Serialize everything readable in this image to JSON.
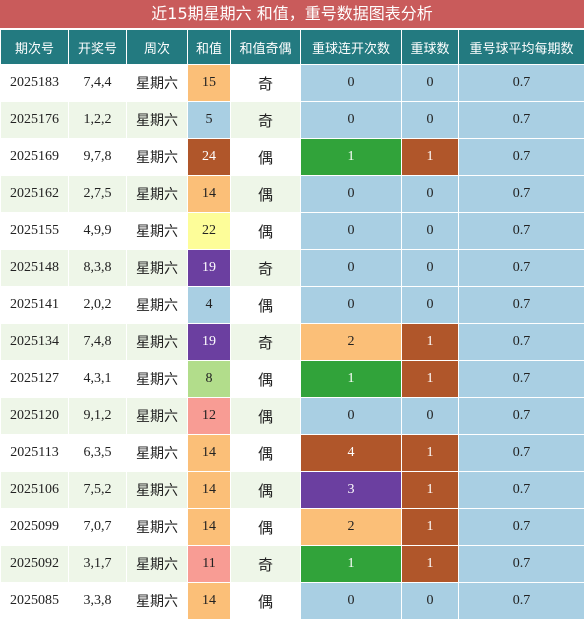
{
  "title": "近15期星期六 和值，重号数据图表分析",
  "headers": [
    "期次号",
    "开奖号",
    "周次",
    "和值",
    "和值奇偶",
    "重球连开次数",
    "重球数",
    "重号球平均每期数"
  ],
  "rows": [
    {
      "period": "2025183",
      "numbers": "7,4,4",
      "weekday": "星期六",
      "sum": "15",
      "sum_color": "orange",
      "parity": "奇",
      "repeat_streak": "0",
      "streak_color": "blue",
      "repeat_count": "0",
      "count_color": "blue",
      "avg": "0.7"
    },
    {
      "period": "2025176",
      "numbers": "1,2,2",
      "weekday": "星期六",
      "sum": "5",
      "sum_color": "blue",
      "parity": "奇",
      "repeat_streak": "0",
      "streak_color": "blue",
      "repeat_count": "0",
      "count_color": "blue",
      "avg": "0.7"
    },
    {
      "period": "2025169",
      "numbers": "9,7,8",
      "weekday": "星期六",
      "sum": "24",
      "sum_color": "brown",
      "parity": "偶",
      "repeat_streak": "1",
      "streak_color": "green",
      "repeat_count": "1",
      "count_color": "darkorange",
      "avg": "0.7"
    },
    {
      "period": "2025162",
      "numbers": "2,7,5",
      "weekday": "星期六",
      "sum": "14",
      "sum_color": "orange",
      "parity": "偶",
      "repeat_streak": "0",
      "streak_color": "blue",
      "repeat_count": "0",
      "count_color": "blue",
      "avg": "0.7"
    },
    {
      "period": "2025155",
      "numbers": "4,9,9",
      "weekday": "星期六",
      "sum": "22",
      "sum_color": "yellow",
      "parity": "偶",
      "repeat_streak": "0",
      "streak_color": "blue",
      "repeat_count": "0",
      "count_color": "blue",
      "avg": "0.7"
    },
    {
      "period": "2025148",
      "numbers": "8,3,8",
      "weekday": "星期六",
      "sum": "19",
      "sum_color": "purple",
      "parity": "奇",
      "repeat_streak": "0",
      "streak_color": "blue",
      "repeat_count": "0",
      "count_color": "blue",
      "avg": "0.7"
    },
    {
      "period": "2025141",
      "numbers": "2,0,2",
      "weekday": "星期六",
      "sum": "4",
      "sum_color": "blue",
      "parity": "偶",
      "repeat_streak": "0",
      "streak_color": "blue",
      "repeat_count": "0",
      "count_color": "blue",
      "avg": "0.7"
    },
    {
      "period": "2025134",
      "numbers": "7,4,8",
      "weekday": "星期六",
      "sum": "19",
      "sum_color": "purple",
      "parity": "奇",
      "repeat_streak": "2",
      "streak_color": "orange",
      "repeat_count": "1",
      "count_color": "darkorange",
      "avg": "0.7"
    },
    {
      "period": "2025127",
      "numbers": "4,3,1",
      "weekday": "星期六",
      "sum": "8",
      "sum_color": "green-light",
      "parity": "偶",
      "repeat_streak": "1",
      "streak_color": "green",
      "repeat_count": "1",
      "count_color": "darkorange",
      "avg": "0.7"
    },
    {
      "period": "2025120",
      "numbers": "9,1,2",
      "weekday": "星期六",
      "sum": "12",
      "sum_color": "pink",
      "parity": "偶",
      "repeat_streak": "0",
      "streak_color": "blue",
      "repeat_count": "0",
      "count_color": "blue",
      "avg": "0.7"
    },
    {
      "period": "2025113",
      "numbers": "6,3,5",
      "weekday": "星期六",
      "sum": "14",
      "sum_color": "orange",
      "parity": "偶",
      "repeat_streak": "4",
      "streak_color": "brown",
      "repeat_count": "1",
      "count_color": "darkorange",
      "avg": "0.7"
    },
    {
      "period": "2025106",
      "numbers": "7,5,2",
      "weekday": "星期六",
      "sum": "14",
      "sum_color": "orange",
      "parity": "偶",
      "repeat_streak": "3",
      "streak_color": "purple",
      "repeat_count": "1",
      "count_color": "darkorange",
      "avg": "0.7"
    },
    {
      "period": "2025099",
      "numbers": "7,0,7",
      "weekday": "星期六",
      "sum": "14",
      "sum_color": "orange",
      "parity": "偶",
      "repeat_streak": "2",
      "streak_color": "orange",
      "repeat_count": "1",
      "count_color": "darkorange",
      "avg": "0.7"
    },
    {
      "period": "2025092",
      "numbers": "3,1,7",
      "weekday": "星期六",
      "sum": "11",
      "sum_color": "pink",
      "parity": "奇",
      "repeat_streak": "1",
      "streak_color": "green",
      "repeat_count": "1",
      "count_color": "darkorange",
      "avg": "0.7"
    },
    {
      "period": "2025085",
      "numbers": "3,3,8",
      "weekday": "星期六",
      "sum": "14",
      "sum_color": "orange",
      "parity": "偶",
      "repeat_streak": "0",
      "streak_color": "blue",
      "repeat_count": "0",
      "count_color": "blue",
      "avg": "0.7"
    }
  ],
  "colors": {
    "title_bg": "#c95b5b",
    "header_bg": "#237a80",
    "orange": "#fbbf78",
    "blue": "#a9cfe3",
    "brown": "#b0562a",
    "yellow": "#fdfd99",
    "purple": "#6b3fa0",
    "green-light": "#b2dd8b",
    "pink": "#f89c94",
    "green": "#31a33a",
    "darkorange": "#b0562a"
  }
}
